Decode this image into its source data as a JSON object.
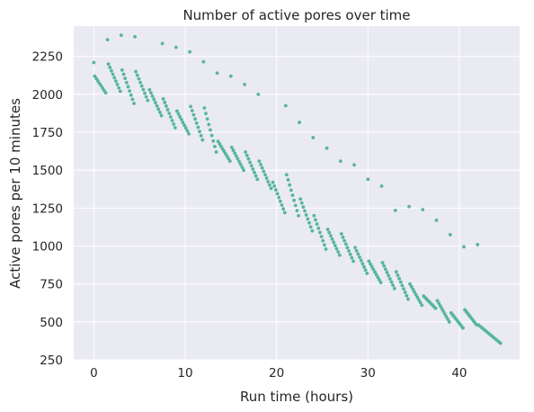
{
  "chart_data": {
    "type": "scatter",
    "title": "Number of active pores over time",
    "xlabel": "Run time (hours)",
    "ylabel": "Active pores per 10 minutes",
    "xlim": [
      -2.2,
      46.6
    ],
    "ylim": [
      250,
      2450
    ],
    "xticks": [
      0,
      10,
      20,
      30,
      40
    ],
    "yticks": [
      250,
      500,
      750,
      1000,
      1250,
      1500,
      1750,
      2000,
      2250
    ],
    "grid": true,
    "colors": {
      "points": "#55b69a",
      "plot_background": "#eaeaf2",
      "grid": "#ffffff",
      "text": "#262626"
    },
    "mux_peaks": [
      {
        "x": 0.0,
        "y": 2210
      },
      {
        "x": 1.5,
        "y": 2360
      },
      {
        "x": 3.0,
        "y": 2390
      },
      {
        "x": 4.5,
        "y": 2380
      },
      {
        "x": 7.5,
        "y": 2335
      },
      {
        "x": 9.0,
        "y": 2310
      },
      {
        "x": 10.5,
        "y": 2280
      },
      {
        "x": 12.0,
        "y": 2215
      },
      {
        "x": 13.5,
        "y": 2140
      },
      {
        "x": 15.0,
        "y": 2120
      },
      {
        "x": 16.5,
        "y": 2065
      },
      {
        "x": 18.0,
        "y": 2000
      },
      {
        "x": 21.0,
        "y": 1925
      },
      {
        "x": 22.5,
        "y": 1815
      },
      {
        "x": 24.0,
        "y": 1715
      },
      {
        "x": 25.5,
        "y": 1645
      },
      {
        "x": 27.0,
        "y": 1560
      },
      {
        "x": 28.5,
        "y": 1535
      },
      {
        "x": 30.0,
        "y": 1440
      },
      {
        "x": 31.5,
        "y": 1395
      },
      {
        "x": 33.0,
        "y": 1235
      },
      {
        "x": 34.5,
        "y": 1260
      },
      {
        "x": 36.0,
        "y": 1240
      },
      {
        "x": 37.5,
        "y": 1170
      },
      {
        "x": 39.0,
        "y": 1075
      },
      {
        "x": 40.5,
        "y": 995
      },
      {
        "x": 42.0,
        "y": 1010
      }
    ],
    "decay_segments": [
      {
        "x0": 0.1,
        "x1": 1.3,
        "y0": 2120,
        "y1": 2010,
        "n": 8
      },
      {
        "x0": 1.6,
        "x1": 2.9,
        "y0": 2200,
        "y1": 2020,
        "n": 9
      },
      {
        "x0": 3.1,
        "x1": 4.4,
        "y0": 2160,
        "y1": 1940,
        "n": 9
      },
      {
        "x0": 4.6,
        "x1": 5.9,
        "y0": 2150,
        "y1": 1960,
        "n": 9
      },
      {
        "x0": 6.1,
        "x1": 7.4,
        "y0": 2030,
        "y1": 1860,
        "n": 9
      },
      {
        "x0": 7.6,
        "x1": 8.9,
        "y0": 1970,
        "y1": 1780,
        "n": 9
      },
      {
        "x0": 9.1,
        "x1": 10.4,
        "y0": 1890,
        "y1": 1740,
        "n": 9
      },
      {
        "x0": 10.6,
        "x1": 11.9,
        "y0": 1920,
        "y1": 1700,
        "n": 9
      },
      {
        "x0": 12.1,
        "x1": 13.4,
        "y0": 1910,
        "y1": 1620,
        "n": 9
      },
      {
        "x0": 13.6,
        "x1": 14.9,
        "y0": 1690,
        "y1": 1560,
        "n": 9
      },
      {
        "x0": 15.1,
        "x1": 16.4,
        "y0": 1650,
        "y1": 1500,
        "n": 9
      },
      {
        "x0": 16.6,
        "x1": 17.9,
        "y0": 1620,
        "y1": 1440,
        "n": 9
      },
      {
        "x0": 18.1,
        "x1": 19.4,
        "y0": 1560,
        "y1": 1380,
        "n": 9
      },
      {
        "x0": 19.6,
        "x1": 20.9,
        "y0": 1420,
        "y1": 1220,
        "n": 9
      },
      {
        "x0": 21.1,
        "x1": 22.4,
        "y0": 1470,
        "y1": 1200,
        "n": 9
      },
      {
        "x0": 22.6,
        "x1": 23.9,
        "y0": 1310,
        "y1": 1100,
        "n": 9
      },
      {
        "x0": 24.1,
        "x1": 25.4,
        "y0": 1200,
        "y1": 980,
        "n": 9
      },
      {
        "x0": 25.6,
        "x1": 26.9,
        "y0": 1110,
        "y1": 940,
        "n": 9
      },
      {
        "x0": 27.1,
        "x1": 28.4,
        "y0": 1080,
        "y1": 900,
        "n": 9
      },
      {
        "x0": 28.6,
        "x1": 29.9,
        "y0": 990,
        "y1": 820,
        "n": 9
      },
      {
        "x0": 30.1,
        "x1": 31.4,
        "y0": 900,
        "y1": 760,
        "n": 9
      },
      {
        "x0": 31.6,
        "x1": 32.9,
        "y0": 890,
        "y1": 720,
        "n": 9
      },
      {
        "x0": 33.1,
        "x1": 34.4,
        "y0": 830,
        "y1": 650,
        "n": 9
      },
      {
        "x0": 34.6,
        "x1": 35.9,
        "y0": 750,
        "y1": 610,
        "n": 9
      },
      {
        "x0": 36.1,
        "x1": 37.4,
        "y0": 670,
        "y1": 590,
        "n": 9
      },
      {
        "x0": 37.6,
        "x1": 38.9,
        "y0": 640,
        "y1": 500,
        "n": 9
      },
      {
        "x0": 39.1,
        "x1": 40.4,
        "y0": 560,
        "y1": 460,
        "n": 9
      },
      {
        "x0": 40.6,
        "x1": 41.9,
        "y0": 580,
        "y1": 480,
        "n": 9
      },
      {
        "x0": 42.1,
        "x1": 44.5,
        "y0": 480,
        "y1": 360,
        "n": 14
      }
    ]
  }
}
